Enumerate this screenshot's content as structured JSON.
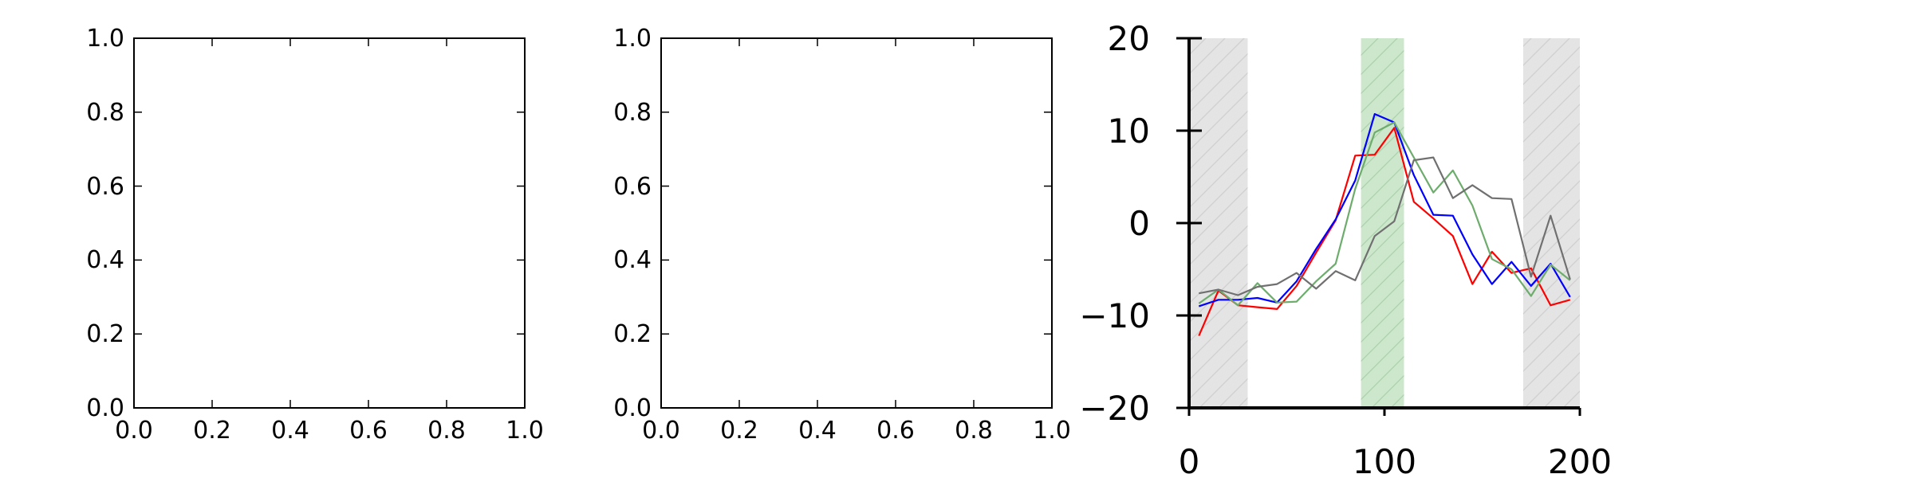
{
  "chart_data": [
    {
      "type": "line",
      "title": "",
      "xlabel": "",
      "ylabel": "",
      "xlim": [
        0,
        1
      ],
      "ylim": [
        0,
        1
      ],
      "grid": false,
      "x_ticks": [
        "0.0",
        "0.2",
        "0.4",
        "0.6",
        "0.8",
        "1.0"
      ],
      "y_ticks": [
        "0.0",
        "0.2",
        "0.4",
        "0.6",
        "0.8",
        "1.0"
      ],
      "series": []
    },
    {
      "type": "line",
      "title": "",
      "xlabel": "",
      "ylabel": "",
      "xlim": [
        0,
        1
      ],
      "ylim": [
        0,
        1
      ],
      "grid": false,
      "x_ticks": [
        "0.0",
        "0.2",
        "0.4",
        "0.6",
        "0.8",
        "1.0"
      ],
      "y_ticks": [
        "0.0",
        "0.2",
        "0.4",
        "0.6",
        "0.8",
        "1.0"
      ],
      "series": []
    },
    {
      "type": "line",
      "title": "",
      "xlabel": "",
      "ylabel": "",
      "xlim": [
        0,
        200
      ],
      "ylim": [
        -20,
        20
      ],
      "grid": false,
      "x_ticks": [
        {
          "value": 0,
          "label": "0"
        },
        {
          "value": 100,
          "label": "100"
        },
        {
          "value": 200,
          "label": "200"
        }
      ],
      "y_ticks": [
        {
          "value": 20,
          "label": "20"
        },
        {
          "value": 10,
          "label": "10"
        },
        {
          "value": 0,
          "label": "0"
        },
        {
          "value": -10,
          "label": "−10"
        },
        {
          "value": -20,
          "label": "−20"
        }
      ],
      "shaded_regions": [
        {
          "x": [
            0,
            30
          ],
          "color": "#e4e4e4",
          "hatch_color": "#cfcfcf"
        },
        {
          "x": [
            88,
            110
          ],
          "color": "#cde7cd",
          "hatch_color": "#a9d2a9"
        },
        {
          "x": [
            171,
            200
          ],
          "color": "#e4e4e4",
          "hatch_color": "#cfcfcf"
        }
      ],
      "series": [
        {
          "color": "#ff0000",
          "x": [
            5,
            15,
            25,
            35,
            45,
            55,
            65,
            75,
            85,
            95,
            105,
            115,
            125,
            135,
            145,
            155,
            165,
            175,
            185,
            195
          ],
          "y": [
            -12.2,
            -7.3,
            -8.9,
            -9.1,
            -9.3,
            -6.8,
            -3.2,
            0.3,
            7.3,
            7.4,
            10.3,
            2.3,
            0.5,
            -1.4,
            -6.6,
            -3.1,
            -5.4,
            -4.9,
            -8.9,
            -8.3
          ]
        },
        {
          "color": "#0000ff",
          "x": [
            5,
            15,
            25,
            35,
            45,
            55,
            65,
            75,
            85,
            95,
            105,
            115,
            125,
            135,
            145,
            155,
            165,
            175,
            185,
            195
          ],
          "y": [
            -9.0,
            -8.3,
            -8.3,
            -8.1,
            -8.6,
            -6.3,
            -2.8,
            0.4,
            4.6,
            11.8,
            10.9,
            5.2,
            0.9,
            0.8,
            -3.4,
            -6.6,
            -4.2,
            -6.8,
            -4.4,
            -8.0
          ]
        },
        {
          "color": "#6dac6d",
          "x": [
            5,
            15,
            25,
            35,
            45,
            55,
            65,
            75,
            85,
            95,
            105,
            115,
            125,
            135,
            145,
            155,
            165,
            175,
            185,
            195
          ],
          "y": [
            -8.7,
            -7.2,
            -8.9,
            -6.5,
            -8.6,
            -8.5,
            -6.3,
            -4.4,
            3.7,
            9.8,
            10.9,
            7.1,
            3.3,
            5.7,
            1.9,
            -3.9,
            -5.0,
            -7.9,
            -4.5,
            -6.2
          ]
        },
        {
          "color": "#707070",
          "x": [
            5,
            15,
            25,
            35,
            45,
            55,
            65,
            75,
            85,
            95,
            105,
            115,
            125,
            135,
            145,
            155,
            165,
            175,
            185,
            195
          ],
          "y": [
            -7.6,
            -7.2,
            -7.8,
            -6.9,
            -6.6,
            -5.4,
            -7.1,
            -5.2,
            -6.2,
            -1.4,
            0.2,
            6.8,
            7.1,
            2.7,
            4.1,
            2.7,
            2.6,
            -5.8,
            0.8,
            -6.1
          ]
        }
      ]
    }
  ]
}
